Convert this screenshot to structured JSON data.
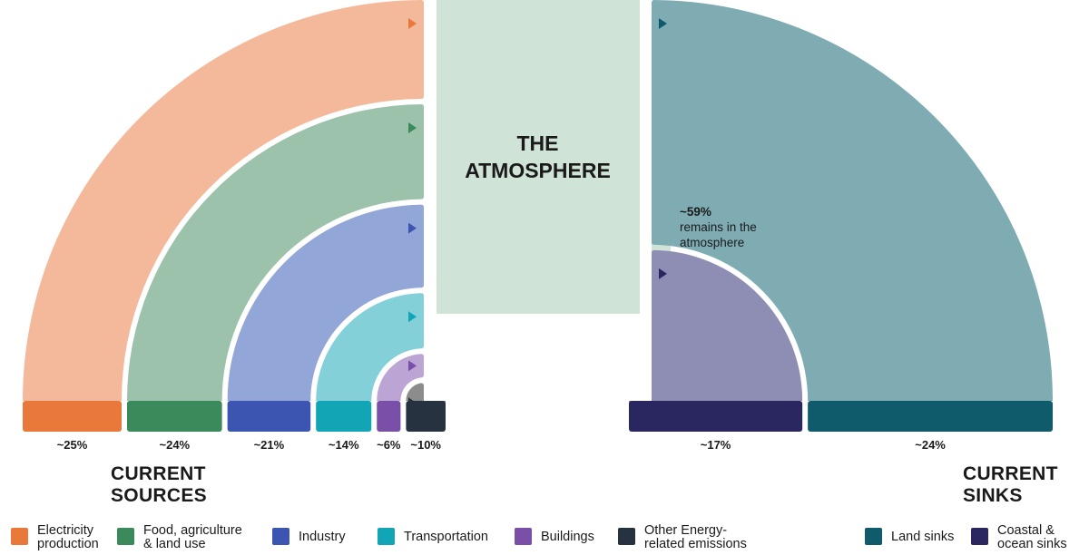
{
  "atmosphere": {
    "title_line1": "THE",
    "title_line2": "ATMOSPHERE"
  },
  "remains": {
    "percent": "~59%",
    "text_line1": "remains in the",
    "text_line2": "atmosphere",
    "fraction": 0.59
  },
  "headings": {
    "sources_line1": "CURRENT",
    "sources_line2": "SOURCES",
    "sinks_line1": "CURRENT",
    "sinks_line2": "SINKS"
  },
  "sources": [
    {
      "label_line1": "Electricity",
      "label_line2": "production",
      "percent": "~25%",
      "value": 25,
      "color": "#E8793A",
      "light": "#F3B99A"
    },
    {
      "label_line1": "Food, agriculture",
      "label_line2": "& land use",
      "percent": "~24%",
      "value": 24,
      "color": "#3A8A5C",
      "light": "#9CC2AB"
    },
    {
      "label_line1": "Industry",
      "label_line2": "",
      "percent": "~21%",
      "value": 21,
      "color": "#3B55B0",
      "light": "#93A6D8"
    },
    {
      "label_line1": "Transportation",
      "label_line2": "",
      "percent": "~14%",
      "value": 14,
      "color": "#11A5B5",
      "light": "#84D0D9"
    },
    {
      "label_line1": "Buildings",
      "label_line2": "",
      "percent": "~6%",
      "value": 6,
      "color": "#7A4FA8",
      "light": "#BCA5D5"
    },
    {
      "label_line1": "Other Energy-",
      "label_line2": "related emissions",
      "percent": "~10%",
      "value": 10,
      "color": "#26323F",
      "light": "#8C8C8C"
    }
  ],
  "sinks": [
    {
      "label_line1": "Land sinks",
      "label_line2": "",
      "percent": "~24%",
      "value": 24,
      "color": "#0F5B6B",
      "light": "#7FACB3"
    },
    {
      "label_line1": "Coastal &",
      "label_line2": "ocean sinks",
      "percent": "~17%",
      "value": 17,
      "color": "#2A2660",
      "light": "#8E8DB3"
    }
  ],
  "colors": {
    "atmosphere": "#CFE3D7",
    "text": "#1a1a1a"
  }
}
